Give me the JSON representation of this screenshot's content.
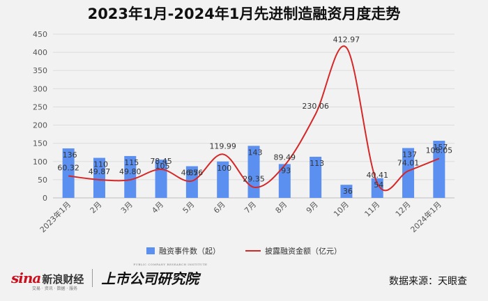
{
  "chart_data": {
    "type": "bar+line",
    "title": "2023年1月-2024年1月先进制造融资月度走势",
    "categories": [
      "2023年1月",
      "2月",
      "3月",
      "4月",
      "5月",
      "6月",
      "7月",
      "8月",
      "9月",
      "10月",
      "11月",
      "12月",
      "2024年1月"
    ],
    "ylim": [
      0,
      450
    ],
    "yticks": [
      0,
      50,
      100,
      150,
      200,
      250,
      300,
      350,
      400,
      450
    ],
    "series": [
      {
        "name": "融资事件数（起）",
        "type": "bar",
        "color": "#5b8ff0",
        "values": [
          136,
          110,
          115,
          105,
          87,
          100,
          143,
          93,
          113,
          36,
          54,
          137,
          157
        ]
      },
      {
        "name": "披露融资金额（亿元）",
        "type": "line",
        "color": "#d62728",
        "values": [
          60.32,
          49.87,
          49.8,
          78.45,
          46.56,
          119.99,
          29.35,
          89.49,
          230.06,
          412.97,
          40.41,
          74.01,
          108.05
        ],
        "labels": [
          "60.32",
          "49.87",
          "49.80",
          "78.45",
          "46.56",
          "119.99",
          "29.35",
          "89.49",
          "230.06",
          "412.97",
          "40.41",
          "74.01",
          "108.05"
        ]
      }
    ],
    "grid": true,
    "legend": "bottom"
  },
  "footer": {
    "logo_sina": "sina",
    "logo_sina_cn": "新浪财经",
    "logo_sina_sub": "交易 · 资讯 · 数据 · 服务",
    "logo_ssgs": "上市公司研究院",
    "logo_ssgs_sub": "PUBLIC COMPANY RESEARCH INSTITUTE",
    "source": "数据来源：天眼查"
  }
}
